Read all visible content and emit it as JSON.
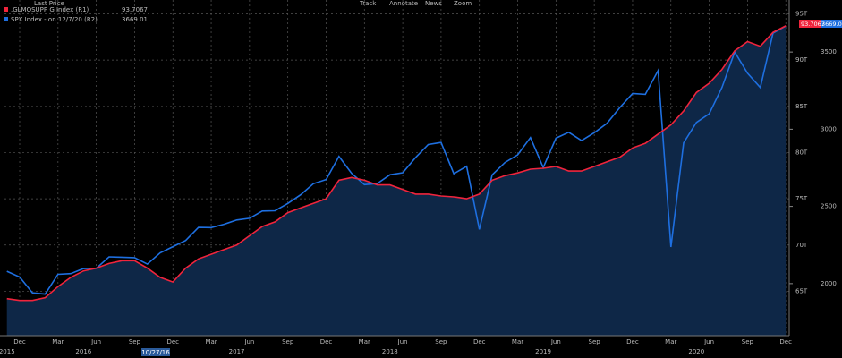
{
  "chart_data": {
    "type": "line",
    "legend_header": "Last Price",
    "toolbar": [
      "Track",
      "Annotate",
      "News",
      "Zoom"
    ],
    "cursor_label": "10/27/16",
    "x": [
      "2015-11",
      "2015-12",
      "2016-01",
      "2016-02",
      "2016-03",
      "2016-04",
      "2016-05",
      "2016-06",
      "2016-07",
      "2016-08",
      "2016-09",
      "2016-10",
      "2016-11",
      "2016-12",
      "2017-01",
      "2017-02",
      "2017-03",
      "2017-04",
      "2017-05",
      "2017-06",
      "2017-07",
      "2017-08",
      "2017-09",
      "2017-10",
      "2017-11",
      "2017-12",
      "2018-01",
      "2018-02",
      "2018-03",
      "2018-04",
      "2018-05",
      "2018-06",
      "2018-07",
      "2018-08",
      "2018-09",
      "2018-10",
      "2018-11",
      "2018-12",
      "2019-01",
      "2019-02",
      "2019-03",
      "2019-04",
      "2019-05",
      "2019-06",
      "2019-07",
      "2019-08",
      "2019-09",
      "2019-10",
      "2019-11",
      "2019-12",
      "2020-01",
      "2020-02",
      "2020-03",
      "2020-04",
      "2020-05",
      "2020-06",
      "2020-07",
      "2020-08",
      "2020-09",
      "2020-10",
      "2020-11",
      "2020-12"
    ],
    "series": [
      {
        "name": ".GLMOSUPP G Index (R1)",
        "color": "#f0243c",
        "axis": "y",
        "last": 93.7067,
        "values": [
          64.2,
          64.0,
          64.0,
          64.3,
          65.5,
          66.5,
          67.2,
          67.5,
          68.0,
          68.3,
          68.3,
          67.5,
          66.5,
          66.0,
          67.5,
          68.5,
          69.0,
          69.5,
          70.0,
          71.0,
          72.0,
          72.5,
          73.5,
          74.0,
          74.5,
          75.0,
          77.0,
          77.3,
          77.0,
          76.5,
          76.5,
          76.0,
          75.5,
          75.5,
          75.3,
          75.2,
          75.0,
          75.5,
          77.0,
          77.5,
          77.8,
          78.2,
          78.3,
          78.5,
          78.0,
          78.0,
          78.5,
          79.0,
          79.5,
          80.5,
          81.0,
          82.0,
          83.0,
          84.5,
          86.5,
          87.5,
          89.0,
          91.0,
          92.0,
          91.5,
          93.0,
          93.7067
        ]
      },
      {
        "name": "SPX Index - on 12/7/20 (R2)",
        "color": "#1e6fe0",
        "axis": "y2",
        "last": 3669.01,
        "values": [
          2080,
          2043,
          1940,
          1932,
          2060,
          2065,
          2097,
          2099,
          2173,
          2171,
          2168,
          2126,
          2199,
          2239,
          2279,
          2364,
          2363,
          2384,
          2412,
          2423,
          2470,
          2472,
          2519,
          2575,
          2647,
          2674,
          2824,
          2714,
          2641,
          2648,
          2705,
          2718,
          2816,
          2901,
          2914,
          2712,
          2760,
          2351,
          2704,
          2784,
          2834,
          2946,
          2752,
          2942,
          2980,
          2926,
          2977,
          3038,
          3141,
          3231,
          3226,
          3380,
          2237,
          2912,
          3044,
          3100,
          3271,
          3500,
          3363,
          3270,
          3622,
          3669.01
        ]
      }
    ],
    "ylim": [
      60.2,
      96.5
    ],
    "yticks": [
      {
        "value": 65,
        "label": "65T"
      },
      {
        "value": 70,
        "label": "70T"
      },
      {
        "value": 75,
        "label": "75T"
      },
      {
        "value": 80,
        "label": "80T"
      },
      {
        "value": 85,
        "label": "85T"
      },
      {
        "value": 90,
        "label": "90T"
      },
      {
        "value": 95,
        "label": "95T"
      }
    ],
    "y2lim": [
      1663,
      3837
    ],
    "y2ticks": [
      2000,
      2500,
      3000,
      3500
    ],
    "xticks": [
      {
        "value": "2015-12",
        "label": "Dec"
      },
      {
        "value": "2016-03",
        "label": "Mar"
      },
      {
        "value": "2016-06",
        "label": "Jun"
      },
      {
        "value": "2016-09",
        "label": "Sep"
      },
      {
        "value": "2016-12",
        "label": "Dec"
      },
      {
        "value": "2017-03",
        "label": "Mar"
      },
      {
        "value": "2017-06",
        "label": "Jun"
      },
      {
        "value": "2017-09",
        "label": "Sep"
      },
      {
        "value": "2017-12",
        "label": "Dec"
      },
      {
        "value": "2018-03",
        "label": "Mar"
      },
      {
        "value": "2018-06",
        "label": "Jun"
      },
      {
        "value": "2018-09",
        "label": "Sep"
      },
      {
        "value": "2018-12",
        "label": "Dec"
      },
      {
        "value": "2019-03",
        "label": "Mar"
      },
      {
        "value": "2019-06",
        "label": "Jun"
      },
      {
        "value": "2019-09",
        "label": "Sep"
      },
      {
        "value": "2019-12",
        "label": "Dec"
      },
      {
        "value": "2020-03",
        "label": "Mar"
      },
      {
        "value": "2020-06",
        "label": "Jun"
      },
      {
        "value": "2020-09",
        "label": "Sep"
      },
      {
        "value": "2020-12",
        "label": "Dec"
      }
    ],
    "year_ticks": [
      {
        "value": "2015-11",
        "label": "2015"
      },
      {
        "value": "2016-05",
        "label": "2016"
      },
      {
        "value": "2017-05",
        "label": "2017"
      },
      {
        "value": "2018-05",
        "label": "2018"
      },
      {
        "value": "2019-05",
        "label": "2019"
      },
      {
        "value": "2020-05",
        "label": "2020"
      }
    ],
    "grid": true
  }
}
